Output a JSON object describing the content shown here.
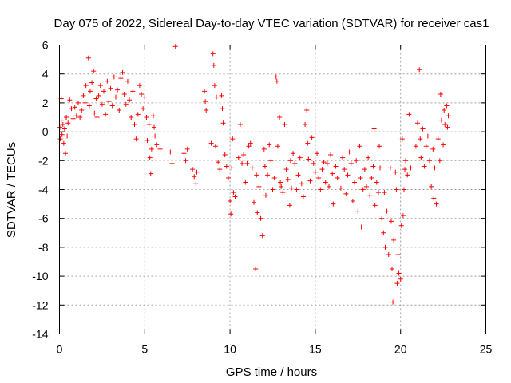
{
  "chart_data": {
    "type": "scatter",
    "title": "Day 075 of 2022, Sidereal Day-to-day VTEC variation (SDTVAR) for receiver cas1",
    "xlabel": "GPS time / hours",
    "ylabel": "SDTVAR / TECUs",
    "xlim": [
      0,
      25
    ],
    "ylim": [
      -14,
      6
    ],
    "xticks": [
      0,
      5,
      10,
      15,
      20,
      25
    ],
    "yticks": [
      -14,
      -12,
      -10,
      -8,
      -6,
      -4,
      -2,
      0,
      2,
      4,
      6
    ],
    "grid": true,
    "marker": "+",
    "color": "#ff0000",
    "series": [
      {
        "name": "SDTVAR",
        "points": [
          [
            0.02,
            0.3
          ],
          [
            0.05,
            -0.5
          ],
          [
            0.1,
            2.3
          ],
          [
            0.1,
            0.8
          ],
          [
            0.15,
            -0.2
          ],
          [
            0.2,
            0.5
          ],
          [
            0.25,
            -0.8
          ],
          [
            0.3,
            0.2
          ],
          [
            0.35,
            -1.5
          ],
          [
            0.4,
            1.0
          ],
          [
            0.45,
            -0.3
          ],
          [
            0.5,
            0.6
          ],
          [
            0.6,
            2.2
          ],
          [
            0.7,
            1.6
          ],
          [
            0.8,
            0.9
          ],
          [
            0.9,
            1.7
          ],
          [
            1.0,
            1.1
          ],
          [
            1.1,
            2.0
          ],
          [
            1.2,
            1.0
          ],
          [
            1.3,
            1.5
          ],
          [
            1.4,
            2.5
          ],
          [
            1.5,
            2.0
          ],
          [
            1.55,
            3.2
          ],
          [
            1.7,
            5.1
          ],
          [
            1.75,
            1.8
          ],
          [
            1.8,
            2.8
          ],
          [
            1.9,
            3.4
          ],
          [
            2.0,
            4.2
          ],
          [
            2.05,
            1.3
          ],
          [
            2.15,
            2.3
          ],
          [
            2.2,
            1.0
          ],
          [
            2.3,
            2.5
          ],
          [
            2.4,
            3.2
          ],
          [
            2.5,
            1.9
          ],
          [
            2.6,
            2.8
          ],
          [
            2.7,
            1.2
          ],
          [
            2.8,
            3.5
          ],
          [
            2.9,
            2.1
          ],
          [
            3.0,
            3.0
          ],
          [
            3.1,
            1.8
          ],
          [
            3.2,
            3.8
          ],
          [
            3.3,
            2.4
          ],
          [
            3.4,
            2.9
          ],
          [
            3.5,
            1.5
          ],
          [
            3.6,
            3.7
          ],
          [
            3.7,
            4.1
          ],
          [
            3.8,
            2.6
          ],
          [
            3.9,
            1.9
          ],
          [
            4.0,
            3.5
          ],
          [
            4.1,
            2.2
          ],
          [
            4.2,
            1.0
          ],
          [
            4.3,
            2.8
          ],
          [
            4.4,
            0.5
          ],
          [
            4.5,
            -0.5
          ],
          [
            4.6,
            1.2
          ],
          [
            4.7,
            3.2
          ],
          [
            4.8,
            2.6
          ],
          [
            4.9,
            1.6
          ],
          [
            5.0,
            2.4
          ],
          [
            5.1,
            1.0
          ],
          [
            5.15,
            -0.6
          ],
          [
            5.25,
            0.5
          ],
          [
            5.3,
            -1.8
          ],
          [
            5.35,
            -2.9
          ],
          [
            5.4,
            -1.2
          ],
          [
            5.5,
            1.1
          ],
          [
            5.55,
            0.3
          ],
          [
            5.6,
            -0.3
          ],
          [
            5.7,
            -0.9
          ],
          [
            5.9,
            -1.2
          ],
          [
            6.5,
            -1.4
          ],
          [
            6.6,
            -2.2
          ],
          [
            6.8,
            5.9
          ],
          [
            7.3,
            -1.5
          ],
          [
            7.4,
            -2.0
          ],
          [
            7.5,
            -1.2
          ],
          [
            7.8,
            -2.6
          ],
          [
            7.9,
            -3.1
          ],
          [
            8.0,
            -3.6
          ],
          [
            8.05,
            -2.8
          ],
          [
            8.5,
            2.8
          ],
          [
            8.55,
            2.1
          ],
          [
            8.6,
            1.5
          ],
          [
            8.9,
            -0.8
          ],
          [
            9.0,
            5.4
          ],
          [
            9.05,
            4.6
          ],
          [
            9.1,
            3.2
          ],
          [
            9.15,
            -1.0
          ],
          [
            9.2,
            2.4
          ],
          [
            9.3,
            -2.1
          ],
          [
            9.4,
            -2.6
          ],
          [
            9.5,
            2.5
          ],
          [
            9.55,
            1.6
          ],
          [
            9.6,
            0.6
          ],
          [
            9.7,
            -1.6
          ],
          [
            9.8,
            -2.4
          ],
          [
            9.9,
            -3.2
          ],
          [
            10.0,
            -4.8
          ],
          [
            10.05,
            -5.7
          ],
          [
            10.1,
            -2.5
          ],
          [
            10.15,
            -0.5
          ],
          [
            10.2,
            -4.2
          ],
          [
            10.3,
            -4.5
          ],
          [
            10.5,
            -1.8
          ],
          [
            10.6,
            0.5
          ],
          [
            10.7,
            -2.2
          ],
          [
            10.8,
            -1.6
          ],
          [
            10.9,
            -3.5
          ],
          [
            11.0,
            -2.2
          ],
          [
            11.1,
            -1.0
          ],
          [
            11.2,
            -0.8
          ],
          [
            11.3,
            -2.5
          ],
          [
            11.4,
            -4.9
          ],
          [
            11.5,
            -9.5
          ],
          [
            11.55,
            -3.0
          ],
          [
            11.6,
            -5.6
          ],
          [
            11.7,
            -3.8
          ],
          [
            11.8,
            -6.0
          ],
          [
            11.9,
            -7.2
          ],
          [
            12.0,
            -1.2
          ],
          [
            12.05,
            -2.4
          ],
          [
            12.1,
            -4.4
          ],
          [
            12.2,
            -3.0
          ],
          [
            12.3,
            -0.9
          ],
          [
            12.4,
            -2.0
          ],
          [
            12.5,
            -4.0
          ],
          [
            12.6,
            -3.2
          ],
          [
            12.7,
            3.8
          ],
          [
            12.75,
            3.5
          ],
          [
            12.8,
            -1.0
          ],
          [
            12.9,
            1.0
          ],
          [
            12.95,
            -3.5
          ],
          [
            13.0,
            -3.8
          ],
          [
            13.1,
            -4.2
          ],
          [
            13.2,
            0.5
          ],
          [
            13.3,
            -2.6
          ],
          [
            13.4,
            -3.3
          ],
          [
            13.5,
            -5.1
          ],
          [
            13.55,
            -2.0
          ],
          [
            13.6,
            -3.9
          ],
          [
            13.7,
            -1.5
          ],
          [
            13.8,
            -2.2
          ],
          [
            13.9,
            -4.0
          ],
          [
            14.0,
            -3.0
          ],
          [
            14.1,
            -1.8
          ],
          [
            14.2,
            -3.6
          ],
          [
            14.3,
            -4.5
          ],
          [
            14.4,
            0.5
          ],
          [
            14.5,
            1.5
          ],
          [
            14.55,
            -0.8
          ],
          [
            14.6,
            -1.9
          ],
          [
            14.7,
            -3.4
          ],
          [
            14.8,
            -0.4
          ],
          [
            14.9,
            -2.2
          ],
          [
            15.0,
            -2.8
          ],
          [
            15.1,
            -1.5
          ],
          [
            15.2,
            -3.2
          ],
          [
            15.3,
            -4.0
          ],
          [
            15.4,
            -2.6
          ],
          [
            15.5,
            -2.1
          ],
          [
            15.6,
            -3.5
          ],
          [
            15.7,
            -2.2
          ],
          [
            15.8,
            -3.8
          ],
          [
            15.9,
            -1.6
          ],
          [
            16.0,
            -2.9
          ],
          [
            16.05,
            -5.0
          ],
          [
            16.2,
            -2.4
          ],
          [
            16.3,
            -3.2
          ],
          [
            16.5,
            -3.9
          ],
          [
            16.6,
            -1.8
          ],
          [
            16.7,
            -2.6
          ],
          [
            16.8,
            -4.3
          ],
          [
            16.9,
            -3.0
          ],
          [
            17.0,
            -1.4
          ],
          [
            17.1,
            -2.2
          ],
          [
            17.2,
            -4.8
          ],
          [
            17.3,
            -3.5
          ],
          [
            17.4,
            -2.0
          ],
          [
            17.5,
            -5.5
          ],
          [
            17.6,
            -1.0
          ],
          [
            17.65,
            -3.2
          ],
          [
            17.7,
            -6.6
          ],
          [
            17.8,
            -4.0
          ],
          [
            17.9,
            -2.6
          ],
          [
            18.0,
            -3.8
          ],
          [
            18.1,
            -1.8
          ],
          [
            18.2,
            -4.4
          ],
          [
            18.3,
            -3.2
          ],
          [
            18.4,
            -2.4
          ],
          [
            18.45,
            0.2
          ],
          [
            18.5,
            -5.1
          ],
          [
            18.6,
            -3.5
          ],
          [
            18.7,
            -4.2
          ],
          [
            18.75,
            -1.0
          ],
          [
            18.8,
            -2.5
          ],
          [
            18.9,
            -6.0
          ],
          [
            19.0,
            -7.0
          ],
          [
            19.05,
            -4.2
          ],
          [
            19.1,
            -8.0
          ],
          [
            19.2,
            -5.5
          ],
          [
            19.3,
            -8.5
          ],
          [
            19.4,
            -2.5
          ],
          [
            19.45,
            -6.2
          ],
          [
            19.5,
            -9.5
          ],
          [
            19.55,
            -11.8
          ],
          [
            19.6,
            -7.5
          ],
          [
            19.7,
            -2.8
          ],
          [
            19.75,
            -4.0
          ],
          [
            19.8,
            -10.5
          ],
          [
            19.85,
            -8.5
          ],
          [
            19.9,
            -9.8
          ],
          [
            20.0,
            -10.2
          ],
          [
            20.05,
            -6.5
          ],
          [
            20.1,
            -0.5
          ],
          [
            20.15,
            -5.8
          ],
          [
            20.2,
            -4.0
          ],
          [
            20.25,
            -2.6
          ],
          [
            20.3,
            -2.0
          ],
          [
            20.4,
            -3.0
          ],
          [
            20.5,
            1.2
          ],
          [
            20.6,
            -2.5
          ],
          [
            20.9,
            -1.0
          ],
          [
            21.0,
            0.6
          ],
          [
            21.1,
            4.3
          ],
          [
            21.15,
            -0.5
          ],
          [
            21.2,
            -1.8
          ],
          [
            21.3,
            0.2
          ],
          [
            21.4,
            -2.4
          ],
          [
            21.5,
            -1.0
          ],
          [
            21.6,
            -0.3
          ],
          [
            21.7,
            -2.0
          ],
          [
            21.8,
            -3.8
          ],
          [
            21.9,
            -1.2
          ],
          [
            21.95,
            -4.6
          ],
          [
            22.0,
            -2.5
          ],
          [
            22.1,
            -5.0
          ],
          [
            22.2,
            -0.5
          ],
          [
            22.3,
            -2.0
          ],
          [
            22.35,
            2.6
          ],
          [
            22.4,
            0.8
          ],
          [
            22.5,
            -0.9
          ],
          [
            22.55,
            1.5
          ],
          [
            22.6,
            0.5
          ],
          [
            22.7,
            1.8
          ],
          [
            22.75,
            0.3
          ],
          [
            22.8,
            1.1
          ]
        ]
      }
    ]
  }
}
